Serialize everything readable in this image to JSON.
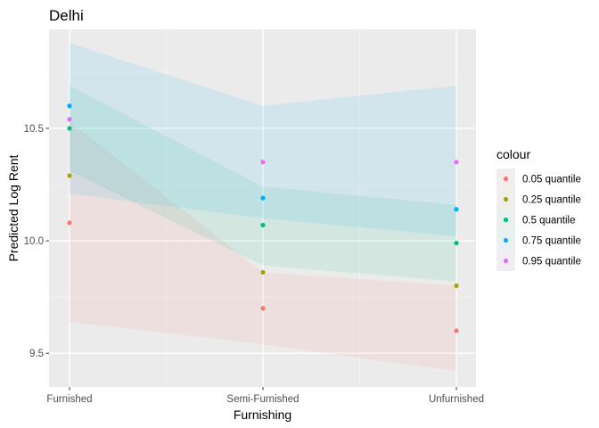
{
  "chart_data": {
    "type": "scatter",
    "title": "Delhi",
    "xlabel": "Furnishing",
    "ylabel": "Predicted Log Rent",
    "categories": [
      "Furnished",
      "Semi-Furnished",
      "Unfurnished"
    ],
    "ylim": [
      9.35,
      10.94
    ],
    "yticks": [
      9.5,
      10.0,
      10.5
    ],
    "ytick_labels": [
      "9.5",
      "10.0",
      "10.5"
    ],
    "grid": true,
    "legend": {
      "title": "colour",
      "position": "right"
    },
    "series": [
      {
        "name": "0.05 quantile",
        "color": "#F8766D",
        "values": [
          10.08,
          9.7,
          9.6
        ],
        "ribbon_low": [
          9.64,
          9.54,
          9.42
        ],
        "ribbon_high": [
          10.53,
          9.86,
          9.8
        ]
      },
      {
        "name": "0.25 quantile",
        "color": "#A3A500",
        "values": [
          10.29,
          9.86,
          9.8
        ]
      },
      {
        "name": "0.5 quantile",
        "color": "#00BF7D",
        "values": [
          10.5,
          10.07,
          9.99
        ],
        "ribbon_low": [
          10.31,
          9.89,
          9.82
        ],
        "ribbon_high": [
          10.69,
          10.24,
          10.16
        ]
      },
      {
        "name": "0.75 quantile",
        "color": "#00B0F6",
        "values": [
          10.6,
          10.19,
          10.14
        ],
        "ribbon_low": [
          10.21,
          10.1,
          10.02
        ],
        "ribbon_high": [
          10.88,
          10.6,
          10.69
        ]
      },
      {
        "name": "0.95 quantile",
        "color": "#E76BF3",
        "values": [
          10.54,
          10.35,
          10.35
        ]
      }
    ]
  }
}
